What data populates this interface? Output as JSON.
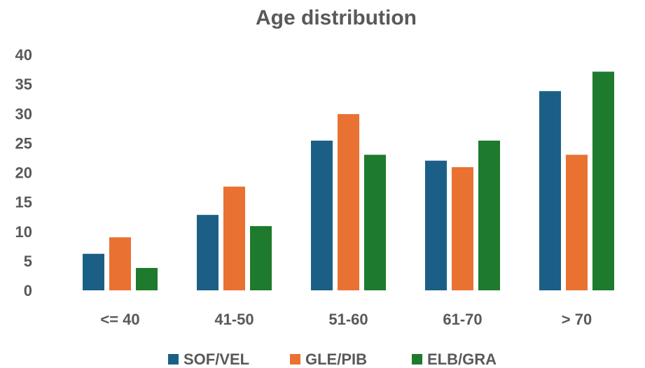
{
  "chart_data": {
    "type": "bar",
    "title": "Age distribution",
    "xlabel": "",
    "ylabel": "",
    "categories": [
      "<= 40",
      "41-50",
      "51-60",
      "61-70",
      "> 70"
    ],
    "series": [
      {
        "name": "SOF/VEL",
        "color": "#1B5F86",
        "values": [
          6.2,
          12.8,
          25.4,
          22.0,
          33.8
        ]
      },
      {
        "name": "GLE/PIB",
        "color": "#E97132",
        "values": [
          9.0,
          17.6,
          29.9,
          20.9,
          23.0
        ]
      },
      {
        "name": "ELB/GRA",
        "color": "#1E7A2C",
        "values": [
          3.8,
          10.9,
          23.0,
          25.4,
          37.1
        ]
      }
    ],
    "ylim": [
      0,
      40
    ],
    "yticks": [
      "0",
      "5",
      "10",
      "15",
      "20",
      "25",
      "30",
      "35",
      "40"
    ],
    "grid": false,
    "legend_position": "bottom"
  }
}
